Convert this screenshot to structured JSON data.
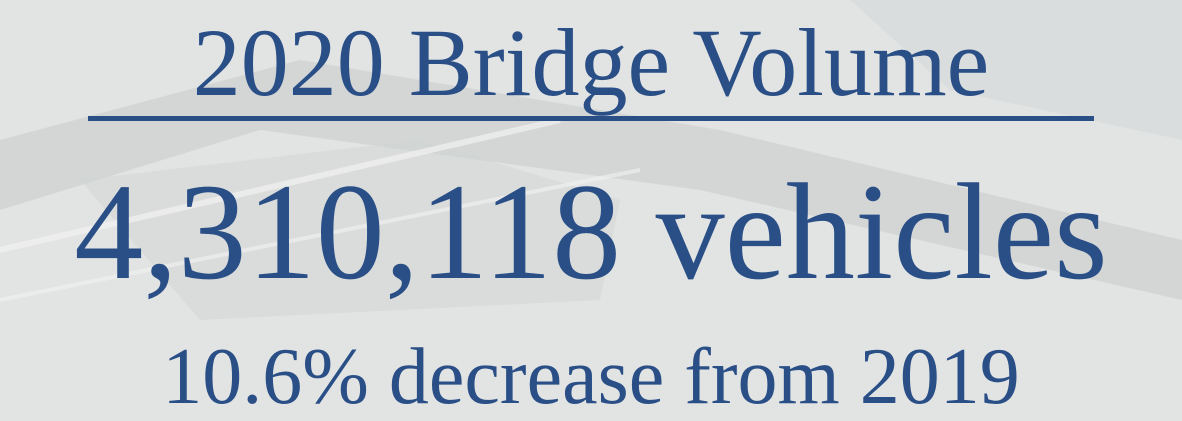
{
  "title": "2020 Bridge Volume",
  "headline": "4,310,118 vehicles",
  "subline": "10.6% decrease from 2019"
}
